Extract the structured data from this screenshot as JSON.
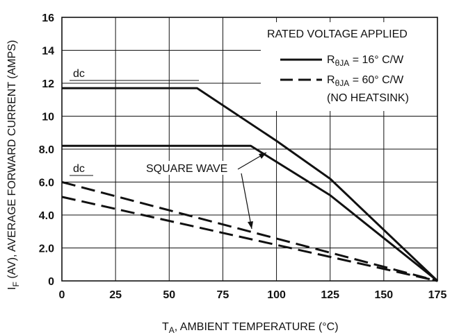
{
  "chart_data": {
    "type": "line",
    "xlabel": {
      "main": "T",
      "sub": "A",
      "rest": ", AMBIENT TEMPERATURE (°C)"
    },
    "ylabel": {
      "main": "I",
      "sub": "F",
      "rest": " (AV), AVERAGE FORWARD CURRENT (AMPS)"
    },
    "xlim": [
      0,
      175
    ],
    "ylim": [
      0,
      16
    ],
    "x_ticks": [
      "0",
      "25",
      "50",
      "75",
      "100",
      "125",
      "150",
      "175"
    ],
    "y_ticks": [
      "0",
      "2.0",
      "4.0",
      "6.0",
      "8.0",
      "10",
      "12",
      "14",
      "16"
    ],
    "grid": true,
    "series": [
      {
        "name": "RθJA = 16° C/W",
        "style": "solid",
        "x": [
          0,
          63,
          100,
          125,
          175
        ],
        "y": [
          11.7,
          11.7,
          8.5,
          6.2,
          0
        ]
      },
      {
        "name": "RθJA = 16° C/W",
        "style": "solid",
        "x": [
          0,
          88,
          125,
          175
        ],
        "y": [
          8.2,
          8.2,
          5.2,
          0
        ]
      },
      {
        "name": "RθJA = 60° C/W",
        "style": "dashed",
        "x": [
          0,
          175
        ],
        "y": [
          6.0,
          0
        ]
      },
      {
        "name": "RθJA = 60° C/W",
        "style": "dashed",
        "x": [
          0,
          175
        ],
        "y": [
          5.1,
          0
        ]
      }
    ],
    "legend": {
      "header": "RATED VOLTAGE APPLIED",
      "items": [
        {
          "base": "R",
          "sub": "θJA",
          "rest": " = 16° C/W",
          "style": "solid"
        },
        {
          "base": "R",
          "sub": "θJA",
          "rest": " = 60° C/W",
          "style": "dashed"
        }
      ],
      "note": "(NO HEATSINK)"
    },
    "annotations": {
      "dc_top": "dc",
      "dc_bottom": "dc",
      "square_wave": "SQUARE WAVE"
    },
    "line_color": "#111111"
  }
}
